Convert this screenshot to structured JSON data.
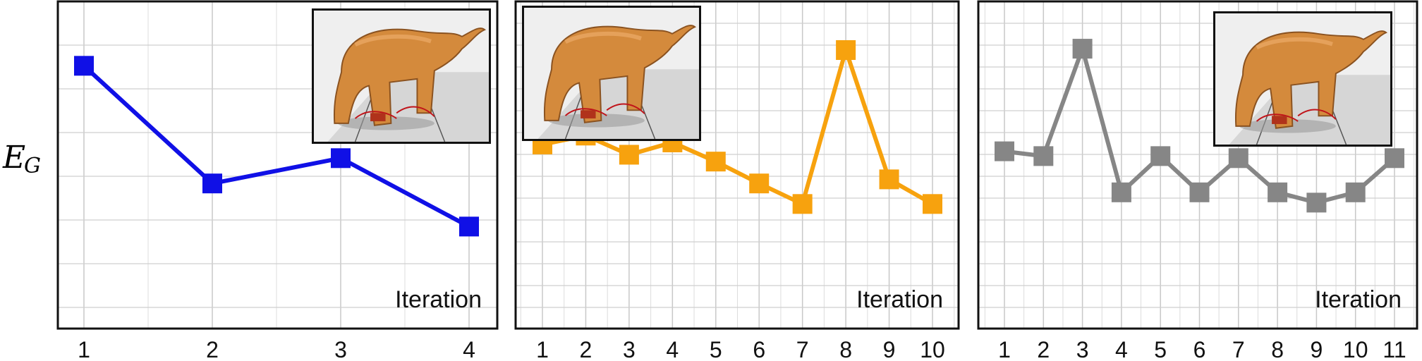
{
  "y_label": {
    "main": "E",
    "sub": "G"
  },
  "chart_data": [
    {
      "type": "line",
      "xlabel": "Iteration",
      "categories": [
        "1",
        "2",
        "3",
        "4"
      ],
      "series": [
        {
          "color": "#1010e6",
          "values": [
            3.8,
            2.08,
            2.45,
            1.45
          ]
        }
      ],
      "ylim": [
        0,
        4.7
      ],
      "grid": true
    },
    {
      "type": "line",
      "xlabel": "Iteration",
      "categories": [
        "1",
        "2",
        "3",
        "4",
        "5",
        "6",
        "7",
        "8",
        "9",
        "10"
      ],
      "series": [
        {
          "color": "#f7a20e",
          "values": [
            2.65,
            2.78,
            2.5,
            2.68,
            2.4,
            2.08,
            1.78,
            4.03,
            2.14,
            1.78
          ]
        }
      ],
      "ylim": [
        0,
        4.7
      ],
      "grid": true
    },
    {
      "type": "line",
      "xlabel": "Iteration",
      "categories": [
        "1",
        "2",
        "3",
        "4",
        "5",
        "6",
        "7",
        "8",
        "9",
        "10",
        "11"
      ],
      "series": [
        {
          "color": "#868686",
          "values": [
            2.55,
            2.48,
            4.05,
            1.95,
            2.48,
            1.95,
            2.45,
            1.95,
            1.8,
            1.95,
            2.45
          ]
        }
      ],
      "ylim": [
        0,
        4.7
      ],
      "grid": true
    }
  ]
}
